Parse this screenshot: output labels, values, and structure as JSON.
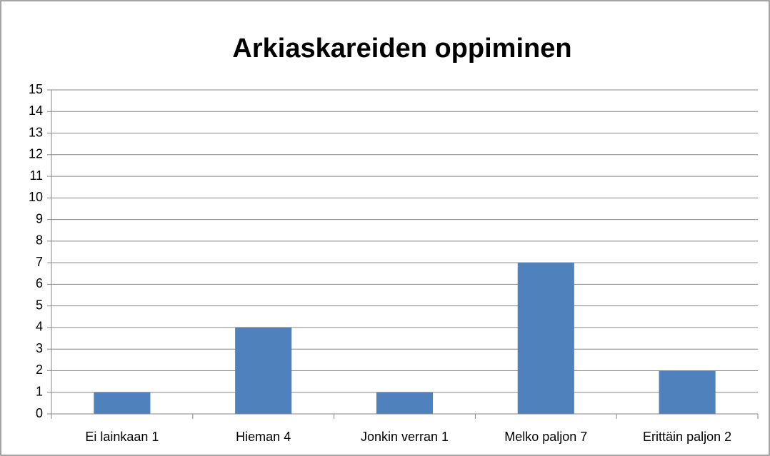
{
  "chart_data": {
    "type": "bar",
    "title": "Arkiaskareiden oppiminen",
    "categories": [
      "Ei lainkaan 1",
      "Hieman 4",
      "Jonkin verran 1",
      "Melko paljon 7",
      "Erittäin paljon 2"
    ],
    "values": [
      1,
      4,
      1,
      7,
      2
    ],
    "color": "#4f81bd",
    "ylim": [
      0,
      15
    ],
    "yticks": [
      0,
      1,
      2,
      3,
      4,
      5,
      6,
      7,
      8,
      9,
      10,
      11,
      12,
      13,
      14,
      15
    ],
    "grid": true
  }
}
